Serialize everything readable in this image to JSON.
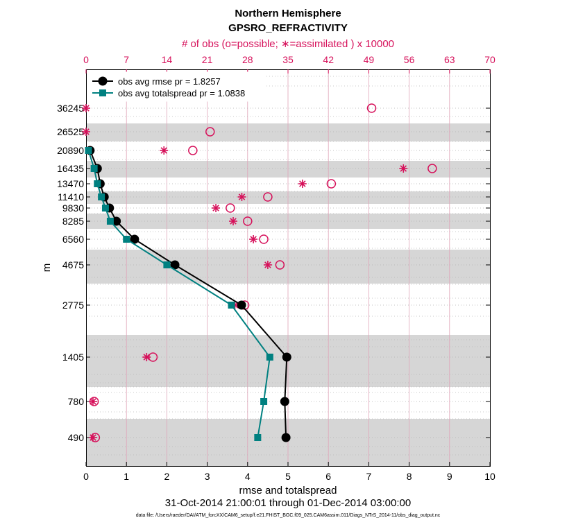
{
  "chart_data": {
    "type": "line",
    "title": "Northern Hemisphere",
    "subtitle": "GPSRO_REFRACTIVITY",
    "top_axis_label": "# of obs (o=possible; ∗=assimilated ) x 10000",
    "top_axis_ticks": [
      "0",
      "7",
      "14",
      "21",
      "28",
      "35",
      "42",
      "49",
      "56",
      "63",
      "70"
    ],
    "xlabel": "rmse and totalspread",
    "x_ticks": [
      "0",
      "1",
      "2",
      "3",
      "4",
      "5",
      "6",
      "7",
      "8",
      "9",
      "10"
    ],
    "xlim": [
      0,
      10
    ],
    "ylabel": "m",
    "y_tick_labels": [
      "36245",
      "26525",
      "20890",
      "16435",
      "13470",
      "11410",
      "9830",
      "8285",
      "6560",
      "4675",
      "2775",
      "1405",
      "780",
      "490"
    ],
    "date_range": "31-Oct-2014 21:00:01 through 01-Dec-2014 03:00:00",
    "footnote": "data file: /Users/raeder/DAI/ATM_forcXX/CAM6_setup/f.e21.FHIST_BGC.f09_025.CAM6assim.011/Diags_NTrS_2014-11/obs_diag_output.nc",
    "legend": {
      "position": "top-left",
      "entries": [
        "obs avg rmse pr = 1.8257",
        "obs avg totalspread pr = 1.0838"
      ]
    },
    "series": [
      {
        "name": "obs avg rmse",
        "color": "#000000",
        "marker": "circle",
        "values": [
          null,
          null,
          0.1,
          0.28,
          0.35,
          0.45,
          0.58,
          0.75,
          1.2,
          2.2,
          3.85,
          4.97,
          4.92,
          4.95
        ]
      },
      {
        "name": "obs avg totalspread",
        "color": "#008080",
        "marker": "square",
        "values": [
          null,
          null,
          0.06,
          0.2,
          0.28,
          0.38,
          0.48,
          0.6,
          1.0,
          2.0,
          3.6,
          4.55,
          4.4,
          4.25
        ]
      }
    ],
    "obs_counts_x10000": {
      "possible": [
        49.5,
        21.5,
        18.5,
        60,
        42.5,
        31.5,
        25,
        28,
        30.8,
        33.6,
        27.5,
        11.6,
        1.4,
        1.6
      ],
      "assimilated": [
        0,
        0,
        13.5,
        55,
        37.5,
        27,
        22.5,
        25.5,
        29,
        31.5,
        25.8,
        10.5,
        1.2,
        1.2
      ]
    },
    "colors": {
      "rmse": "#000000",
      "spread": "#008080",
      "obs": "#d6105a",
      "band": "#d6d6d6"
    }
  }
}
